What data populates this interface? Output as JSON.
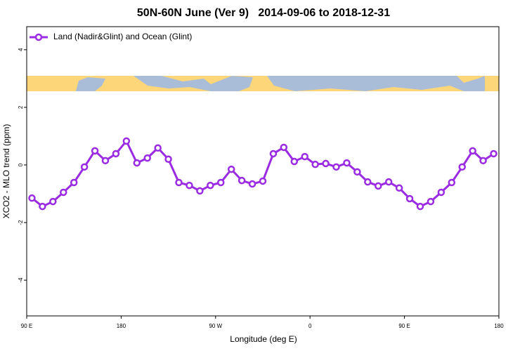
{
  "chart_data": {
    "type": "line",
    "title": "50N-60N June (Ver 9)   2014-09-06 to 2018-12-31",
    "xlabel": "Longitude (deg E)",
    "ylabel": "XCO2 - MLO trend (ppm)",
    "x": [
      95,
      105,
      115,
      125,
      135,
      145,
      155,
      165,
      175,
      185,
      195,
      205,
      215,
      225,
      235,
      245,
      255,
      265,
      275,
      285,
      295,
      305,
      315,
      325,
      335,
      345,
      355,
      365,
      375,
      385,
      395,
      405,
      415,
      425,
      435,
      445,
      455,
      465,
      475,
      485,
      495,
      505,
      515,
      525,
      535
    ],
    "series": [
      {
        "name": "Land (Nadir&Glint) and Ocean (Glint)",
        "color": "#9a2be2",
        "values": [
          -1.15,
          -1.44,
          -1.27,
          -0.95,
          -0.61,
          -0.07,
          0.49,
          0.15,
          0.39,
          0.83,
          0.07,
          0.24,
          0.59,
          0.2,
          -0.61,
          -0.71,
          -0.9,
          -0.71,
          -0.61,
          -0.15,
          -0.54,
          -0.66,
          -0.56,
          0.39,
          0.61,
          0.12,
          0.29,
          0.02,
          0.05,
          -0.07,
          0.07,
          -0.24,
          -0.59,
          -0.73,
          -0.59,
          -0.8,
          -1.17,
          -1.44,
          -1.27,
          -0.95,
          -0.61,
          -0.07,
          0.49,
          0.15,
          0.39
        ]
      }
    ],
    "xlim": [
      90,
      540
    ],
    "xticks": [
      {
        "value": 90,
        "label": "90 E"
      },
      180,
      {
        "value": 270,
        "label": "90 W"
      },
      {
        "value": 360,
        "label": "0"
      },
      {
        "value": 450,
        "label": "90 E"
      },
      {
        "value": 540,
        "label": "180"
      }
    ],
    "ylim": [
      -5.24,
      4.8
    ],
    "yticks": [
      -4,
      -2,
      0,
      2,
      4
    ],
    "legend": "top-left"
  }
}
